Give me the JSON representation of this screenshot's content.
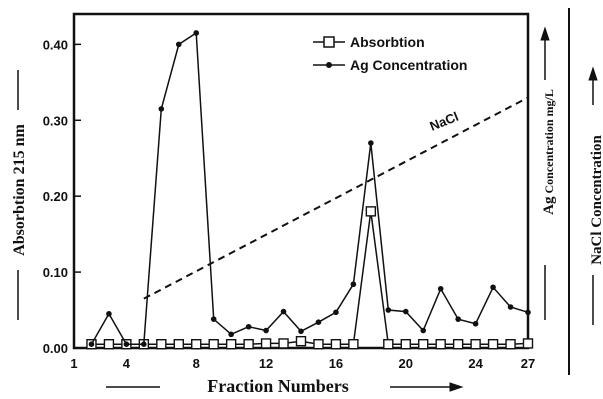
{
  "chart_data": {
    "type": "line",
    "xlabel": "Fraction Numbers",
    "ylabel": "Absorbtion 215 nm",
    "ylabel_right_inner_prefix": "Ag",
    "ylabel_right_inner_main": "Concentration mg/L",
    "ylabel_right_outer": "NaCl Concentration",
    "xlim": [
      1,
      27
    ],
    "ylim": [
      0,
      0.44
    ],
    "x_ticks": [
      "1",
      "4",
      "8",
      "12",
      "16",
      "20",
      "24",
      "27"
    ],
    "x_tick_values": [
      1,
      4,
      8,
      12,
      16,
      20,
      24,
      27
    ],
    "y_ticks": [
      "0.00",
      "0.10",
      "0.20",
      "0.30",
      "0.40"
    ],
    "y_tick_values": [
      0,
      0.1,
      0.2,
      0.3,
      0.4
    ],
    "legend_position": "top-center",
    "series": [
      {
        "name": "Absorbtion",
        "marker": "open-square",
        "x": [
          2,
          3,
          4,
          5,
          6,
          7,
          8,
          9,
          10,
          11,
          12,
          13,
          14,
          15,
          16,
          17,
          18,
          19,
          20,
          21,
          22,
          23,
          24,
          25,
          26,
          27
        ],
        "values": [
          0.005,
          0.005,
          0.005,
          0.005,
          0.005,
          0.005,
          0.005,
          0.005,
          0.005,
          0.005,
          0.006,
          0.006,
          0.009,
          0.005,
          0.005,
          0.005,
          0.18,
          0.005,
          0.005,
          0.005,
          0.005,
          0.005,
          0.005,
          0.005,
          0.005,
          0.006
        ]
      },
      {
        "name": "Ag Concentration",
        "marker": "filled-circle",
        "x": [
          2,
          3,
          4,
          5,
          6,
          7,
          8,
          9,
          10,
          11,
          12,
          13,
          14,
          15,
          16,
          17,
          18,
          19,
          20,
          21,
          22,
          23,
          24,
          25,
          26,
          27
        ],
        "values": [
          0.005,
          0.045,
          0.005,
          0.005,
          0.315,
          0.4,
          0.415,
          0.038,
          0.018,
          0.028,
          0.023,
          0.048,
          0.022,
          0.034,
          0.047,
          0.084,
          0.27,
          0.05,
          0.048,
          0.023,
          0.078,
          0.038,
          0.032,
          0.08,
          0.054,
          0.047
        ]
      }
    ],
    "gradient_line": {
      "label": "NaCl",
      "style": "dashed",
      "x": [
        5,
        27
      ],
      "values": [
        0.065,
        0.33
      ]
    }
  }
}
